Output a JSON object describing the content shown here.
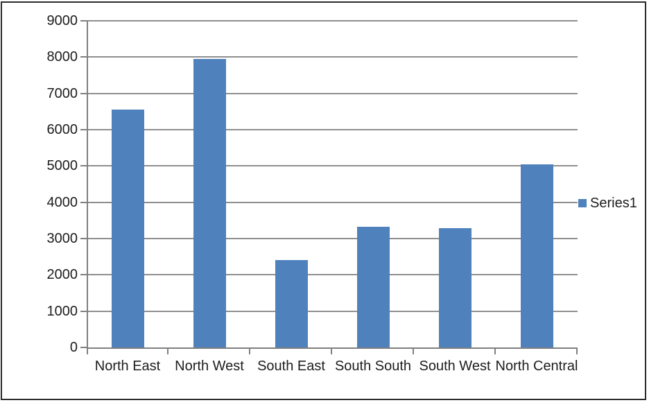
{
  "chart_data": {
    "type": "bar",
    "title": "",
    "xlabel": "",
    "ylabel": "",
    "categories": [
      "North East",
      "North West",
      "South East",
      "South South",
      "South West",
      "North Central"
    ],
    "series": [
      {
        "name": "Series1",
        "values": [
          6550,
          7950,
          2410,
          3320,
          3290,
          5040
        ]
      }
    ],
    "ylim": [
      0,
      9000
    ],
    "ytick_step": 1000,
    "ytick_labels": [
      "0",
      "1000",
      "2000",
      "3000",
      "4000",
      "5000",
      "6000",
      "7000",
      "8000",
      "9000"
    ],
    "grid": true,
    "legend_position": "right",
    "bar_color": "#4f81bd"
  },
  "colors": {
    "bar": "#4f81bd",
    "gridline": "#8e8e8e",
    "axis": "#7f7f7f",
    "text": "#1c1c1c",
    "frame_border": "#2b2b2b",
    "background": "#ffffff"
  }
}
